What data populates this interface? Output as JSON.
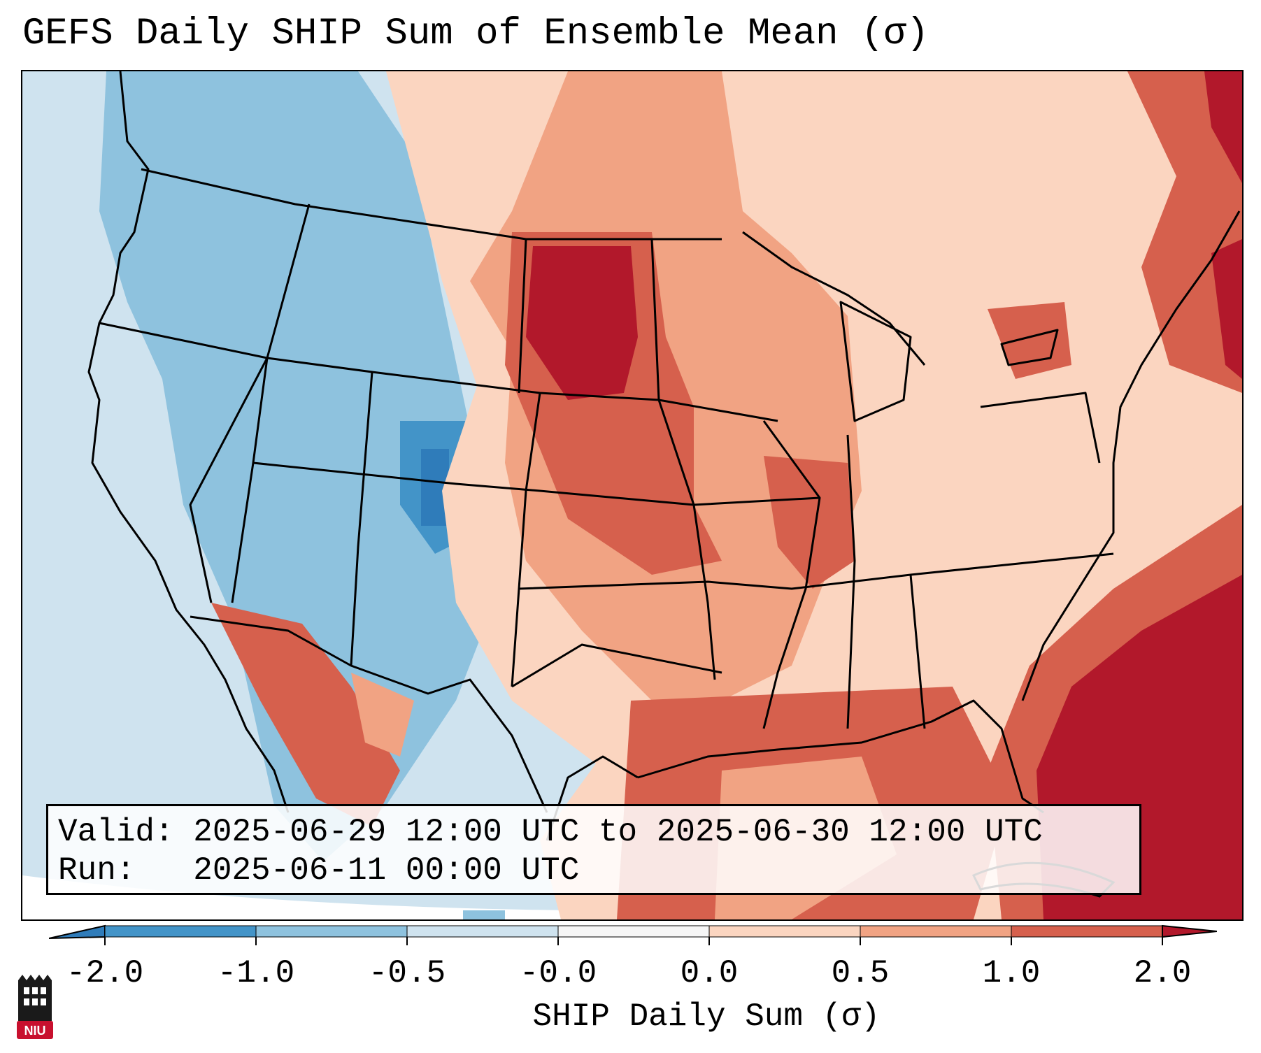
{
  "title": "GEFS Daily SHIP Sum of Ensemble Mean (σ)",
  "info": {
    "valid_line": "Valid: 2025-06-29 12:00 UTC to 2025-06-30 12:00 UTC",
    "run_line": "Run:   2025-06-11 00:00 UTC"
  },
  "colorbar": {
    "label": "SHIP Daily Sum (σ)",
    "ticks": [
      "-2.0",
      "-1.0",
      "-0.5",
      "-0.0",
      "0.0",
      "0.5",
      "1.0",
      "2.0"
    ],
    "colors": [
      "#2f7cba",
      "#4394c8",
      "#8ec2de",
      "#cfe3ef",
      "#f6f6f6",
      "#fbd5c0",
      "#f1a383",
      "#d6604d",
      "#b2182b"
    ]
  },
  "logo": {
    "text": "NIU"
  },
  "map": {
    "region": "Contiguous United States",
    "variable": "SHIP daily sum anomaly",
    "ocean_color": "#cfe3ef"
  }
}
